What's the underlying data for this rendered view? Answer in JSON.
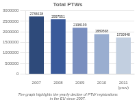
{
  "chart_data": {
    "type": "bar",
    "title": "Total PTWs",
    "categories": [
      "2007",
      "2008",
      "2009",
      "2010",
      "2011\n(prov)"
    ],
    "values": [
      2736028,
      2597551,
      2198199,
      1889568,
      1730948
    ],
    "colors": [
      "#2e4a7a",
      "#3a5a9a",
      "#7a8fbf",
      "#9aaed0",
      "#c2cfe0"
    ],
    "ylim": [
      0,
      3000000
    ],
    "yticks": [
      0,
      500000,
      1000000,
      1500000,
      2000000,
      2500000,
      3000000
    ],
    "grid": true,
    "data_labels": true,
    "annotations": [
      "The graph highlights the yearly decline of PTW registrations",
      "in the EU since 2007."
    ]
  }
}
